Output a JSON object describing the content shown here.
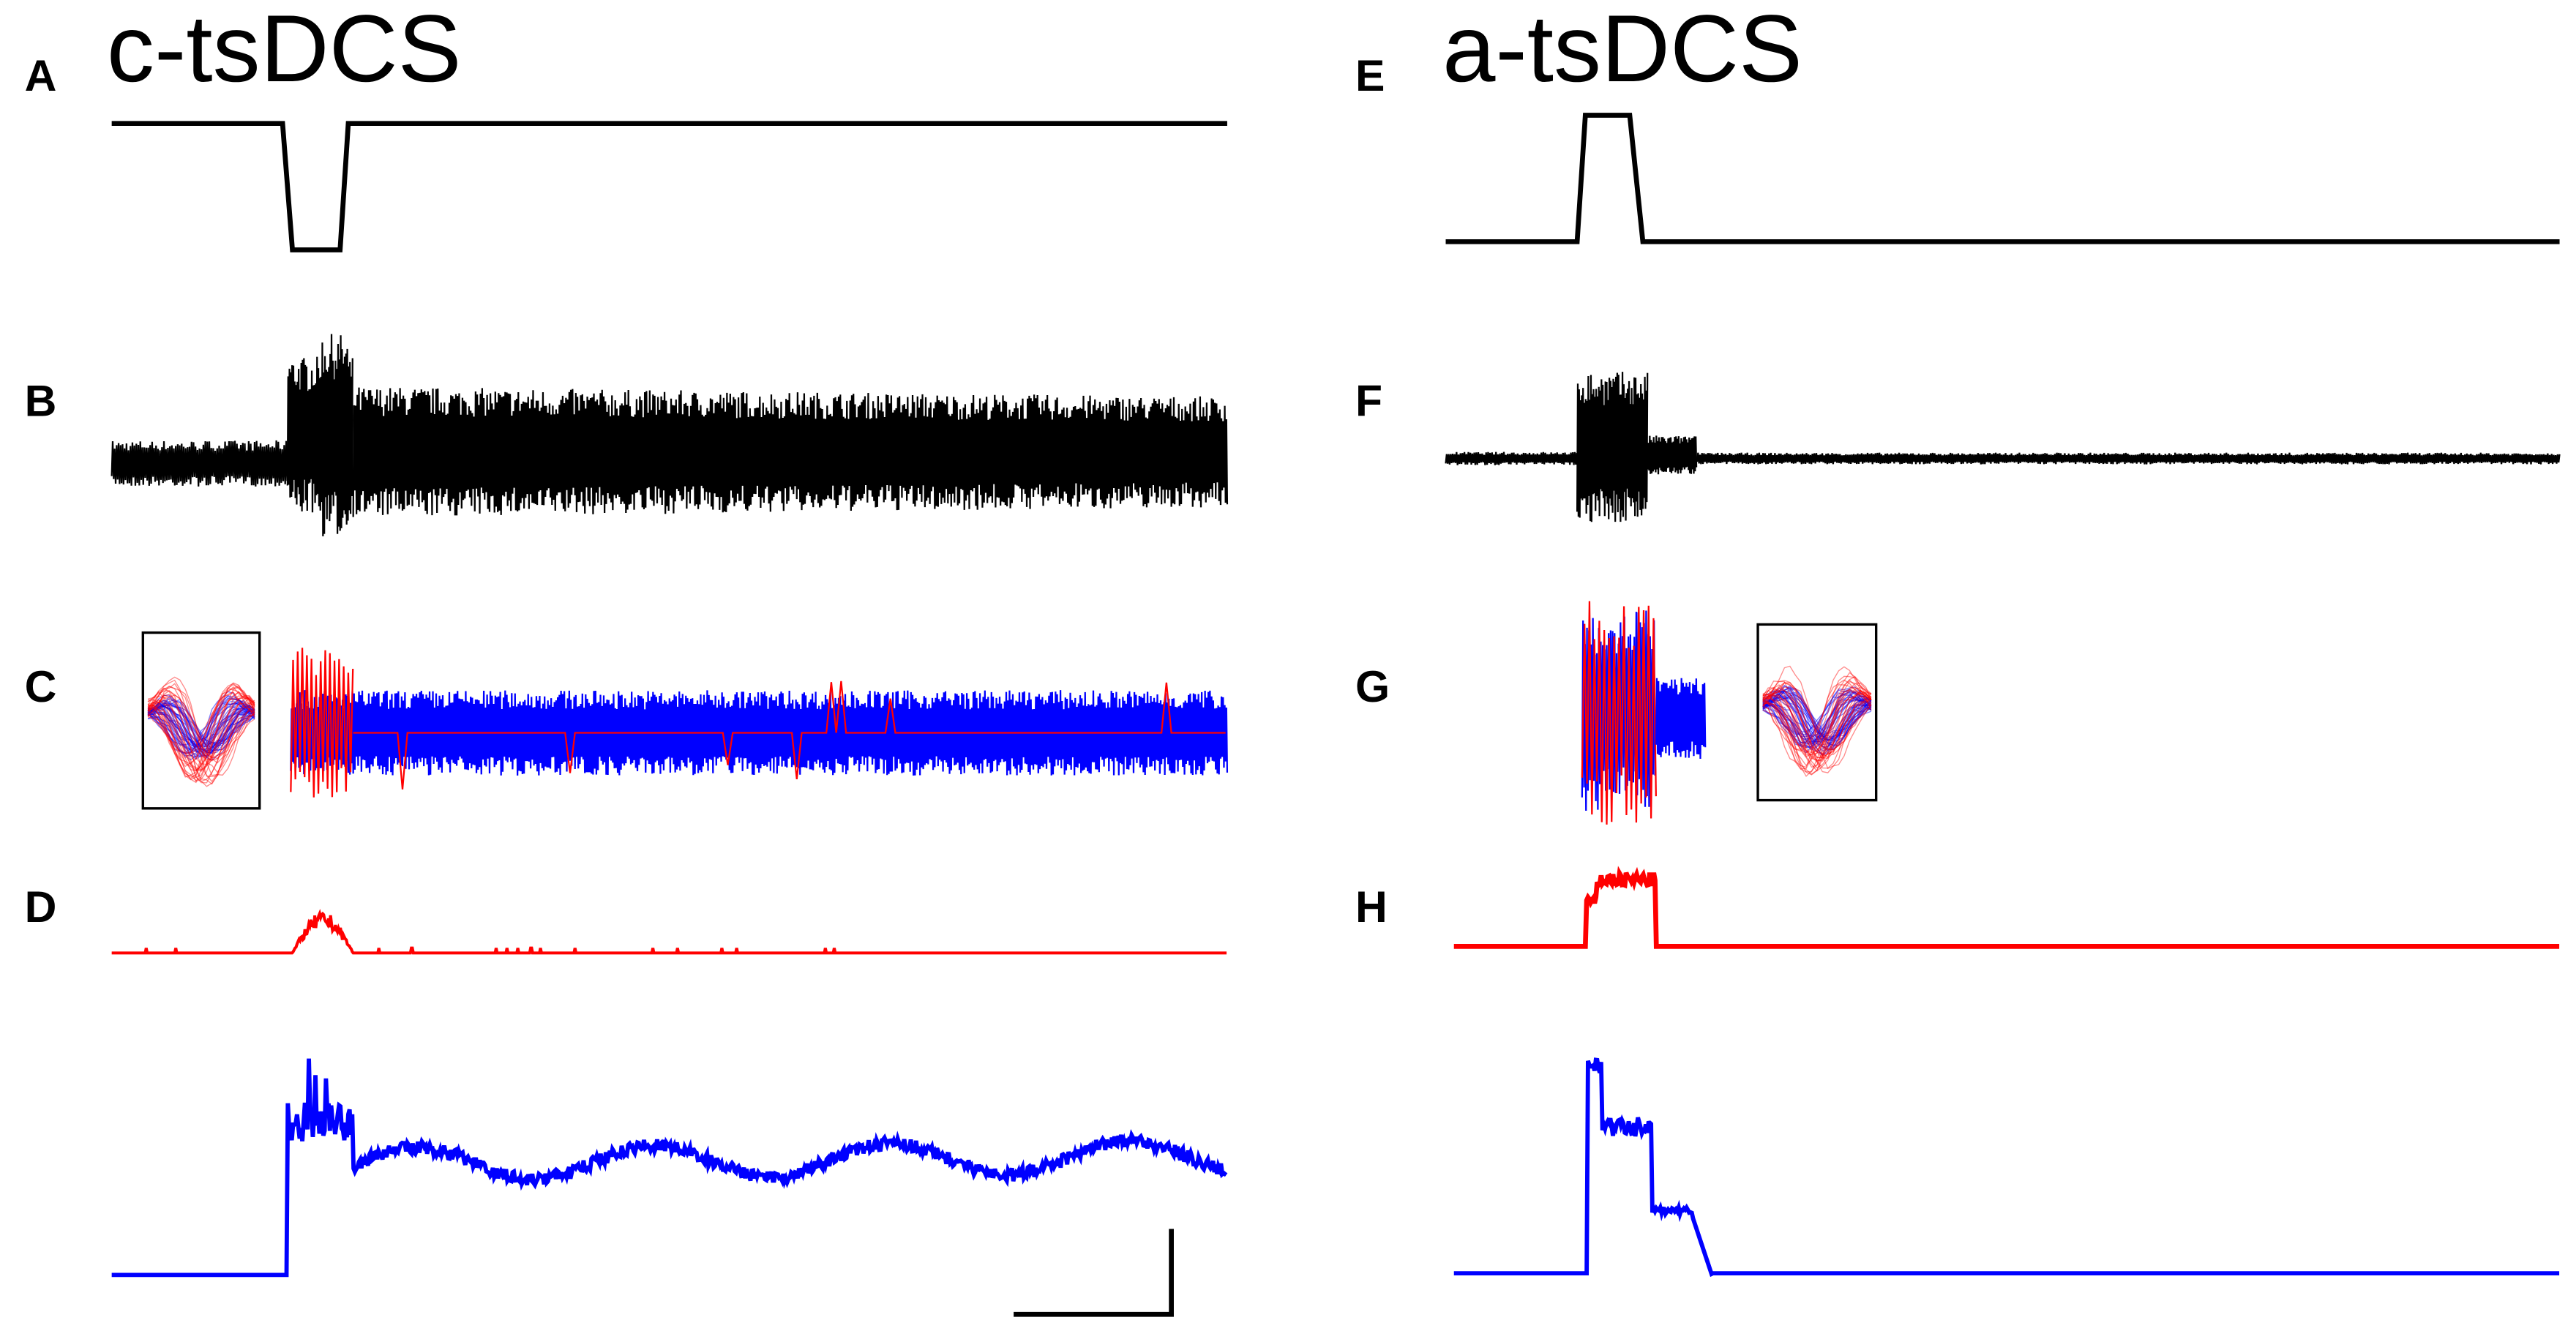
{
  "left": {
    "title": "c-tsDCS",
    "labels": [
      "A",
      "B",
      "C",
      "D"
    ]
  },
  "right": {
    "title": "a-tsDCS",
    "labels": [
      "E",
      "F",
      "G",
      "H"
    ]
  }
}
